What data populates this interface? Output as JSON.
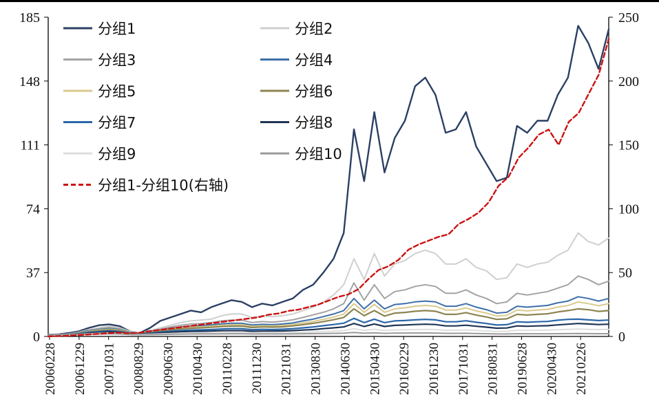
{
  "chart_data": {
    "type": "line",
    "title": "",
    "xlabel": "",
    "ylabel": "",
    "y_left": {
      "ticks": [
        "0",
        "37",
        "74",
        "111",
        "148",
        "185"
      ],
      "ylim": [
        0,
        185
      ]
    },
    "y_right": {
      "ticks": [
        "0",
        "50",
        "100",
        "150",
        "200",
        "250"
      ],
      "ylim": [
        0,
        250
      ]
    },
    "x_tick_labels": [
      "20060228",
      "20061229",
      "20071031",
      "20080829",
      "20090630",
      "20100430",
      "20110228",
      "20111230",
      "20121031",
      "20130830",
      "20140630",
      "20150430",
      "20160229",
      "20161230",
      "20171031",
      "20180831",
      "20190628",
      "20200430",
      "20210226"
    ],
    "grid": false,
    "legend_position": "top-left, two columns",
    "series": [
      {
        "name": "分组1",
        "axis": "left",
        "color": "#2b3f63",
        "dash": "solid",
        "width": 2.4,
        "values": [
          1,
          1.2,
          2,
          3,
          5,
          6.5,
          7,
          6,
          3,
          2,
          5,
          9,
          11,
          13,
          15,
          14,
          17,
          19,
          21,
          20,
          17,
          19,
          18,
          20,
          22,
          27,
          30,
          37,
          45,
          60,
          120,
          90,
          130,
          95,
          115,
          125,
          145,
          150,
          140,
          118,
          120,
          130,
          110,
          100,
          90,
          92,
          122,
          118,
          125,
          125,
          140,
          150,
          180,
          170,
          155,
          178
        ]
      },
      {
        "name": "分组2",
        "axis": "left",
        "color": "#cfcfcf",
        "dash": "solid",
        "width": 2,
        "values": [
          1,
          1.1,
          1.5,
          2.5,
          4,
          5,
          6,
          5,
          3,
          2,
          3.5,
          5,
          6.5,
          8,
          9,
          9.5,
          10,
          12,
          13,
          13,
          11,
          12,
          11.5,
          12,
          13,
          15,
          17,
          20,
          24,
          30,
          45,
          33,
          48,
          35,
          42,
          44,
          48,
          50,
          48,
          42,
          42,
          45,
          40,
          38,
          33,
          34,
          42,
          40,
          42,
          43,
          47,
          50,
          60,
          55,
          53,
          57
        ]
      },
      {
        "name": "分组3",
        "axis": "left",
        "color": "#a3a3a3",
        "dash": "solid",
        "width": 2,
        "values": [
          1,
          1.1,
          1.4,
          2.3,
          3.6,
          4.5,
          5.2,
          4.5,
          2.6,
          1.8,
          3,
          4.2,
          5.5,
          6.5,
          7.2,
          7.5,
          8,
          9,
          9.5,
          9.4,
          8,
          8.6,
          8.3,
          8.8,
          9.6,
          11,
          12.5,
          14,
          16,
          19,
          31,
          21,
          30,
          22,
          26,
          27,
          29,
          30,
          29,
          25,
          25,
          27,
          24,
          22,
          19,
          20,
          25,
          24,
          25,
          26,
          28,
          30,
          35,
          33,
          30,
          32
        ]
      },
      {
        "name": "分组4",
        "axis": "left",
        "color": "#3d6ea8",
        "dash": "solid",
        "width": 2,
        "values": [
          1,
          1.1,
          1.3,
          2.1,
          3.3,
          4,
          4.6,
          4,
          2.4,
          1.7,
          2.7,
          3.7,
          4.7,
          5.5,
          6,
          6.3,
          6.7,
          7.3,
          7.7,
          7.6,
          6.6,
          7,
          6.8,
          7.2,
          7.8,
          9,
          10,
          11.5,
          13,
          15,
          22,
          16,
          21,
          16,
          18.5,
          19,
          20,
          20.5,
          20,
          17.5,
          17.5,
          19,
          17,
          15.5,
          13.5,
          14,
          17.5,
          17,
          17.5,
          18,
          19.5,
          20.5,
          23,
          22,
          20.5,
          22
        ]
      },
      {
        "name": "分组5",
        "axis": "left",
        "color": "#d9c98c",
        "dash": "solid",
        "width": 2,
        "values": [
          1,
          1.1,
          1.2,
          1.9,
          3,
          3.7,
          4.2,
          3.7,
          2.2,
          1.6,
          2.5,
          3.4,
          4.3,
          5,
          5.4,
          5.6,
          6,
          6.5,
          6.8,
          6.8,
          5.9,
          6.2,
          6.1,
          6.4,
          6.9,
          7.8,
          8.7,
          9.9,
          11.2,
          13,
          19,
          14,
          18.5,
          14,
          16,
          16.6,
          17.5,
          18,
          17.5,
          15.3,
          15.3,
          16.5,
          14.8,
          13.5,
          11.8,
          12.2,
          15.3,
          14.8,
          15.3,
          15.7,
          17,
          17.9,
          20,
          19,
          17.8,
          19
        ]
      },
      {
        "name": "分组6",
        "axis": "left",
        "color": "#8c8452",
        "dash": "solid",
        "width": 2.2,
        "values": [
          1,
          1.05,
          1.15,
          1.7,
          2.7,
          3.3,
          3.8,
          3.3,
          2,
          1.5,
          2.3,
          3.1,
          3.8,
          4.4,
          4.8,
          5,
          5.3,
          5.7,
          6,
          6,
          5.2,
          5.5,
          5.4,
          5.6,
          6.1,
          6.8,
          7.6,
          8.6,
          9.7,
          11,
          16,
          12,
          15,
          11.8,
          13.5,
          13.9,
          14.6,
          15,
          14.6,
          12.8,
          12.8,
          13.8,
          12.4,
          11.3,
          9.9,
          10.2,
          12.8,
          12.4,
          12.8,
          13.1,
          14.2,
          15,
          16,
          15.5,
          14.5,
          15
        ]
      },
      {
        "name": "分组7",
        "axis": "left",
        "color": "#2a66a8",
        "dash": "solid",
        "width": 2.2,
        "values": [
          1,
          1.05,
          1.1,
          1.5,
          2.3,
          2.8,
          3.2,
          2.8,
          1.8,
          1.4,
          1.9,
          2.5,
          3,
          3.4,
          3.7,
          3.8,
          4,
          4.3,
          4.5,
          4.5,
          3.9,
          4.1,
          4,
          4.2,
          4.5,
          5,
          5.5,
          6.2,
          6.9,
          7.7,
          10.5,
          8,
          10,
          8,
          9,
          9.2,
          9.6,
          9.9,
          9.6,
          8.5,
          8.5,
          9.1,
          8.2,
          7.5,
          6.6,
          6.8,
          8.5,
          8.2,
          8.5,
          8.7,
          9.4,
          9.9,
          10,
          9.6,
          9.2,
          9.5
        ]
      },
      {
        "name": "分组8",
        "axis": "left",
        "color": "#1f3555",
        "dash": "solid",
        "width": 2.2,
        "values": [
          1,
          1.03,
          1.07,
          1.35,
          1.9,
          2.3,
          2.6,
          2.3,
          1.6,
          1.3,
          1.6,
          2,
          2.4,
          2.7,
          2.9,
          3,
          3.1,
          3.3,
          3.4,
          3.4,
          3,
          3.1,
          3.1,
          3.2,
          3.4,
          3.7,
          4,
          4.5,
          5,
          5.5,
          7.5,
          5.8,
          7.2,
          5.8,
          6.4,
          6.6,
          6.9,
          7.1,
          6.9,
          6.1,
          6.1,
          6.5,
          5.9,
          5.4,
          4.8,
          4.9,
          6.1,
          5.9,
          6.1,
          6.2,
          6.7,
          7.1,
          7.5,
          7.2,
          6.9,
          7.1
        ]
      },
      {
        "name": "分组9",
        "axis": "left",
        "color": "#dedede",
        "dash": "solid",
        "width": 2,
        "values": [
          1,
          1.02,
          1.04,
          1.2,
          1.5,
          1.8,
          2,
          1.8,
          1.3,
          1.15,
          1.3,
          1.5,
          1.7,
          1.9,
          2,
          2.05,
          2.1,
          2.2,
          2.3,
          2.3,
          2.1,
          2.15,
          2.1,
          2.15,
          2.25,
          2.4,
          2.6,
          2.85,
          3.1,
          3.4,
          4.5,
          3.5,
          4.2,
          3.4,
          3.8,
          3.9,
          4,
          4.1,
          4,
          3.6,
          3.6,
          3.8,
          3.5,
          3.2,
          2.9,
          3,
          3.6,
          3.5,
          3.6,
          3.7,
          3.9,
          4.1,
          4.3,
          4.1,
          4,
          4.1
        ]
      },
      {
        "name": "分组10",
        "axis": "left",
        "color": "#9a9a9a",
        "dash": "solid",
        "width": 2,
        "values": [
          1,
          1,
          1.02,
          1.1,
          1.25,
          1.4,
          1.5,
          1.4,
          1.1,
          1,
          1.05,
          1.15,
          1.25,
          1.35,
          1.4,
          1.42,
          1.45,
          1.5,
          1.55,
          1.55,
          1.4,
          1.45,
          1.43,
          1.45,
          1.5,
          1.55,
          1.62,
          1.7,
          1.8,
          1.9,
          2.3,
          1.9,
          2.1,
          1.8,
          1.95,
          1.95,
          2,
          2,
          1.95,
          1.8,
          1.8,
          1.85,
          1.7,
          1.6,
          1.45,
          1.45,
          1.6,
          1.55,
          1.55,
          1.55,
          1.6,
          1.65,
          1.7,
          1.65,
          1.6,
          1.6
        ]
      },
      {
        "name": "分组1-分组10(右轴)",
        "axis": "right",
        "color": "#cc1111",
        "dash": "dashed",
        "width": 2.4,
        "values": [
          0,
          0.3,
          0.6,
          1,
          1.5,
          2,
          2.5,
          3,
          2.5,
          2.8,
          4,
          5,
          6,
          7,
          8,
          9,
          10,
          11,
          12,
          13,
          14,
          15,
          17,
          18,
          20,
          21,
          23,
          25,
          28,
          31,
          33,
          37,
          45,
          52,
          55,
          60,
          68,
          72,
          75,
          78,
          80,
          88,
          92,
          97,
          105,
          118,
          125,
          140,
          148,
          158,
          162,
          150,
          168,
          175,
          190,
          205,
          233
        ]
      }
    ]
  }
}
